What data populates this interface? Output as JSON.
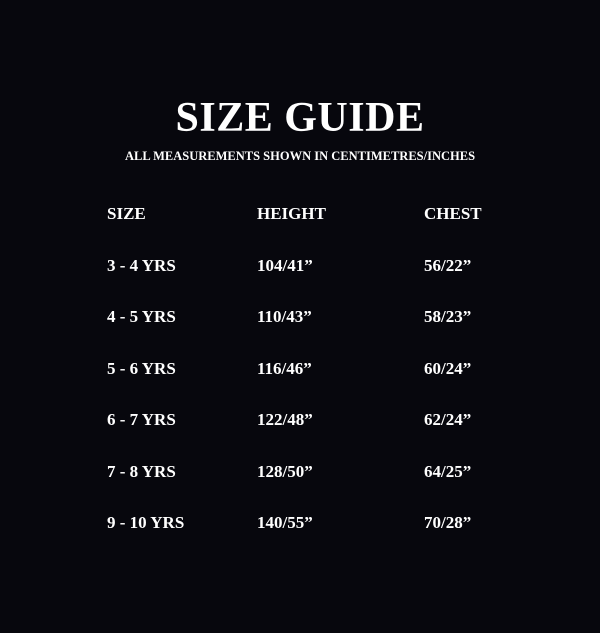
{
  "title": "SIZE GUIDE",
  "subtitle": "ALL MEASUREMENTS SHOWN IN CENTIMETRES/INCHES",
  "table": {
    "headers": [
      "SIZE",
      "HEIGHT",
      "CHEST"
    ],
    "rows": [
      [
        "3 - 4 YRS",
        "104/41”",
        "56/22”"
      ],
      [
        "4 - 5 YRS",
        "110/43”",
        "58/23”"
      ],
      [
        "5 - 6 YRS",
        "116/46”",
        "60/24”"
      ],
      [
        "6 - 7 YRS",
        "122/48”",
        "62/24”"
      ],
      [
        "7 - 8 YRS",
        "128/50”",
        "64/25”"
      ],
      [
        "9 - 10 YRS",
        "140/55”",
        "70/28”"
      ]
    ]
  }
}
